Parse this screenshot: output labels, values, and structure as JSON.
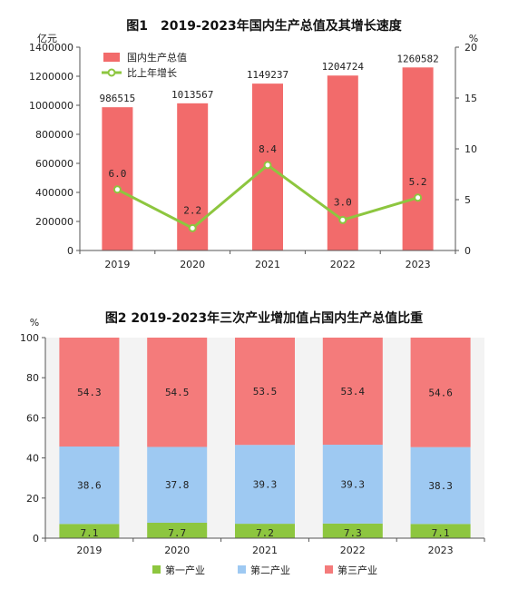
{
  "chart_data": [
    {
      "type": "bar",
      "title": "图1　2019-2023年国内生产总值及其增长速度",
      "ylabel": "亿元",
      "y2label": "%",
      "categories": [
        "2019",
        "2020",
        "2021",
        "2022",
        "2023"
      ],
      "ylim": [
        0,
        1400000
      ],
      "y2lim": [
        0,
        20
      ],
      "yticks": [
        "0",
        "200000",
        "400000",
        "600000",
        "800000",
        "1000000",
        "1200000",
        "1400000"
      ],
      "y2ticks": [
        "0",
        "5",
        "10",
        "15",
        "20"
      ],
      "series": [
        {
          "name": "国内生产总值",
          "kind": "bar",
          "color": "#f26b6b",
          "values": [
            986515,
            1013567,
            1149237,
            1204724,
            1260582
          ],
          "labels": [
            "986515",
            "1013567",
            "1149237",
            "1204724",
            "1260582"
          ]
        },
        {
          "name": "比上年增长",
          "kind": "line",
          "axis": "right",
          "color": "#8dc63f",
          "values": [
            6.0,
            2.2,
            8.4,
            3.0,
            5.2
          ],
          "labels": [
            "6.0",
            "2.2",
            "8.4",
            "3.0",
            "5.2"
          ]
        }
      ],
      "legend": "top-left"
    },
    {
      "type": "bar",
      "stacked": true,
      "title": "图2 2019-2023年三次产业增加值占国内生产总值比重",
      "ylabel": "%",
      "categories": [
        "2019",
        "2020",
        "2021",
        "2022",
        "2023"
      ],
      "ylim": [
        0,
        100
      ],
      "yticks": [
        "0",
        "20",
        "40",
        "60",
        "80",
        "100"
      ],
      "series": [
        {
          "name": "第一产业",
          "color": "#8dc63f",
          "values": [
            7.1,
            7.7,
            7.2,
            7.3,
            7.1
          ],
          "labels": [
            "7.1",
            "7.7",
            "7.2",
            "7.3",
            "7.1"
          ]
        },
        {
          "name": "第二产业",
          "color": "#9ec9f2",
          "values": [
            38.6,
            37.8,
            39.3,
            39.3,
            38.3
          ],
          "labels": [
            "38.6",
            "37.8",
            "39.3",
            "39.3",
            "38.3"
          ]
        },
        {
          "name": "第三产业",
          "color": "#f47b7b",
          "values": [
            54.3,
            54.5,
            53.5,
            53.4,
            54.6
          ],
          "labels": [
            "54.3",
            "54.5",
            "53.5",
            "53.4",
            "54.6"
          ]
        }
      ],
      "legend": "bottom"
    }
  ]
}
